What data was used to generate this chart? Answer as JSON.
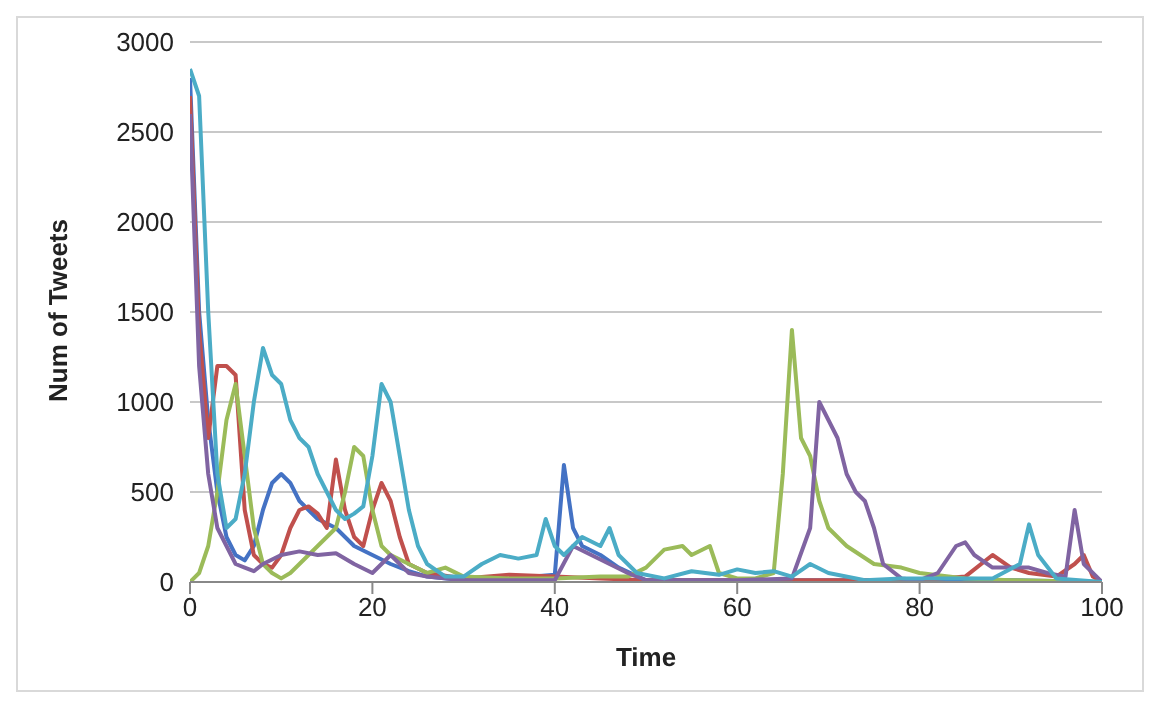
{
  "chart_data": {
    "type": "line",
    "xlabel": "Time",
    "ylabel": "Num of Tweets",
    "xlim": [
      0,
      100
    ],
    "xticks": [
      0,
      20,
      40,
      60,
      80,
      100
    ],
    "ylim": [
      0,
      3000
    ],
    "yticks": [
      0,
      500,
      1000,
      1500,
      2000,
      2500,
      3000
    ],
    "grid": "y",
    "marker": "none",
    "line_style": "solid",
    "series": [
      {
        "color": "#4472c4",
        "x": [
          0,
          1,
          2,
          3,
          4,
          5,
          6,
          7,
          8,
          9,
          10,
          11,
          12,
          13,
          14,
          16,
          18,
          20,
          22,
          24,
          26,
          30,
          35,
          40,
          41,
          42,
          43,
          45,
          47,
          50,
          60,
          70,
          80,
          90,
          100
        ],
        "values": [
          2800,
          1500,
          900,
          500,
          250,
          150,
          120,
          200,
          400,
          550,
          600,
          550,
          450,
          400,
          350,
          300,
          200,
          150,
          100,
          60,
          30,
          10,
          20,
          40,
          650,
          300,
          200,
          150,
          80,
          10,
          10,
          10,
          10,
          10,
          0
        ]
      },
      {
        "color": "#c0504d",
        "x": [
          0,
          1,
          2,
          3,
          4,
          5,
          6,
          7,
          8,
          9,
          10,
          11,
          12,
          13,
          14,
          15,
          16,
          17,
          18,
          19,
          20,
          21,
          22,
          23,
          24,
          26,
          30,
          35,
          40,
          45,
          50,
          60,
          80,
          85,
          88,
          90,
          92,
          95,
          97,
          98,
          99,
          100
        ],
        "values": [
          2700,
          1400,
          800,
          1200,
          1200,
          1150,
          400,
          150,
          100,
          80,
          150,
          300,
          400,
          420,
          380,
          300,
          680,
          400,
          250,
          200,
          400,
          550,
          450,
          250,
          100,
          50,
          20,
          40,
          30,
          20,
          10,
          10,
          10,
          30,
          150,
          80,
          50,
          30,
          100,
          150,
          30,
          0
        ]
      },
      {
        "color": "#9bbb59",
        "x": [
          0,
          1,
          2,
          3,
          4,
          5,
          6,
          7,
          8,
          9,
          10,
          11,
          12,
          14,
          16,
          17,
          18,
          19,
          20,
          21,
          22,
          24,
          26,
          28,
          30,
          35,
          40,
          45,
          48,
          50,
          52,
          54,
          55,
          57,
          58,
          60,
          62,
          64,
          65,
          66,
          67,
          68,
          69,
          70,
          72,
          75,
          78,
          80,
          85,
          90,
          100
        ],
        "values": [
          0,
          50,
          200,
          500,
          900,
          1100,
          700,
          300,
          100,
          50,
          20,
          50,
          100,
          200,
          300,
          500,
          750,
          700,
          400,
          200,
          150,
          100,
          50,
          80,
          30,
          20,
          20,
          30,
          30,
          80,
          180,
          200,
          150,
          200,
          50,
          20,
          20,
          50,
          600,
          1400,
          800,
          700,
          450,
          300,
          200,
          100,
          80,
          50,
          20,
          10,
          0
        ]
      },
      {
        "color": "#8064a2",
        "x": [
          0,
          1,
          2,
          3,
          4,
          5,
          6,
          7,
          8,
          10,
          12,
          14,
          16,
          18,
          20,
          22,
          24,
          26,
          30,
          40,
          42,
          44,
          46,
          48,
          50,
          60,
          66,
          68,
          69,
          70,
          71,
          72,
          73,
          74,
          75,
          76,
          78,
          80,
          82,
          84,
          85,
          86,
          88,
          92,
          94,
          96,
          97,
          98,
          100
        ],
        "values": [
          2600,
          1200,
          600,
          300,
          200,
          100,
          80,
          60,
          100,
          150,
          170,
          150,
          160,
          100,
          50,
          150,
          50,
          30,
          10,
          10,
          200,
          150,
          100,
          50,
          10,
          10,
          20,
          300,
          1000,
          900,
          800,
          600,
          500,
          450,
          300,
          100,
          20,
          10,
          50,
          200,
          220,
          150,
          80,
          80,
          50,
          30,
          400,
          100,
          0
        ]
      },
      {
        "color": "#4bacc6",
        "x": [
          0,
          1,
          2,
          3,
          4,
          5,
          6,
          7,
          8,
          9,
          10,
          11,
          12,
          13,
          14,
          15,
          16,
          17,
          18,
          19,
          20,
          21,
          22,
          23,
          24,
          25,
          26,
          28,
          30,
          32,
          34,
          36,
          38,
          39,
          40,
          41,
          43,
          45,
          46,
          47,
          49,
          52,
          55,
          58,
          60,
          62,
          64,
          66,
          68,
          70,
          74,
          78,
          80,
          85,
          88,
          91,
          92,
          93,
          95,
          100
        ],
        "values": [
          2850,
          2700,
          1500,
          600,
          300,
          350,
          600,
          1000,
          1300,
          1150,
          1100,
          900,
          800,
          750,
          600,
          500,
          400,
          350,
          380,
          420,
          700,
          1100,
          1000,
          700,
          400,
          200,
          100,
          30,
          30,
          100,
          150,
          130,
          150,
          350,
          200,
          150,
          250,
          200,
          300,
          150,
          50,
          20,
          60,
          40,
          70,
          50,
          60,
          30,
          100,
          50,
          10,
          20,
          20,
          20,
          20,
          100,
          320,
          150,
          20,
          0
        ]
      }
    ]
  }
}
